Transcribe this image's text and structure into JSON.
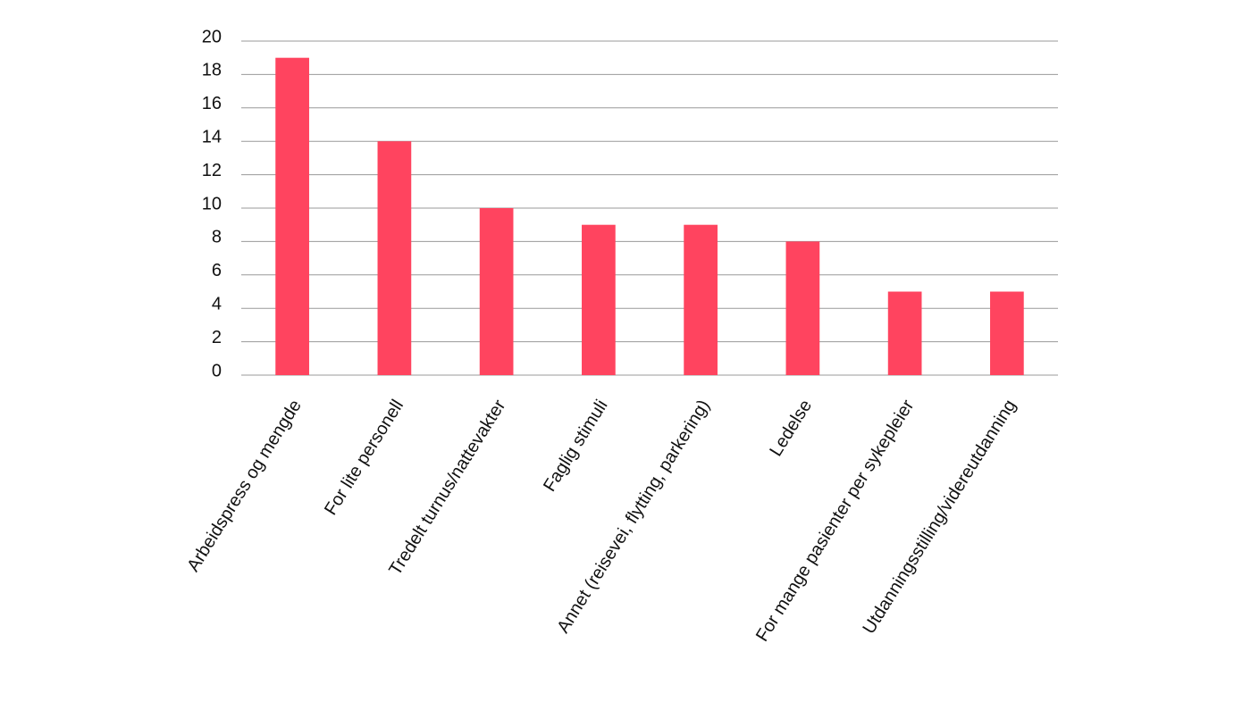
{
  "chart_data": {
    "type": "bar",
    "categories": [
      "Arbeidspress og mengde",
      "For lite personell",
      "Tredelt turnus/nattevakter",
      "Faglig stimuli",
      "Annet (reisevei, flytting, parkering)",
      "Ledelse",
      "For mange pasienter per sykepleier",
      "Utdanningsstilling/videreutdanning"
    ],
    "values": [
      19,
      14,
      10,
      9,
      9,
      8,
      5,
      5
    ],
    "color": "#ff445f",
    "ylim": [
      0,
      20
    ],
    "yticks": [
      0,
      2,
      4,
      6,
      8,
      10,
      12,
      14,
      16,
      18,
      20
    ],
    "grid": true
  }
}
